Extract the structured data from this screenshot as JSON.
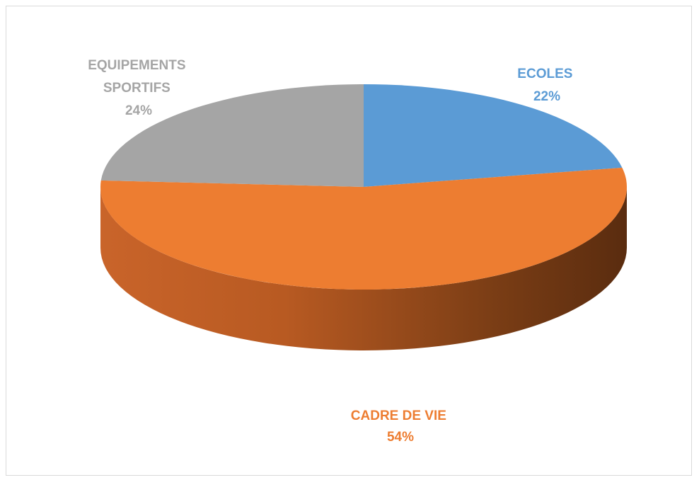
{
  "chart_data": {
    "type": "pie",
    "title": "",
    "slices": [
      {
        "label": "ECOLES",
        "value": 22,
        "value_label": "22%",
        "color": "#5B9BD5"
      },
      {
        "label": "CADRE DE VIE",
        "value": 54,
        "value_label": "54%",
        "color": "#ED7D31"
      },
      {
        "label": "EQUIPEMENTS SPORTIFS",
        "value": 24,
        "value_label": "24%",
        "color": "#A5A5A5"
      }
    ],
    "style": "3d",
    "legend": "none",
    "data_labels": "outside, category name and percentage"
  }
}
